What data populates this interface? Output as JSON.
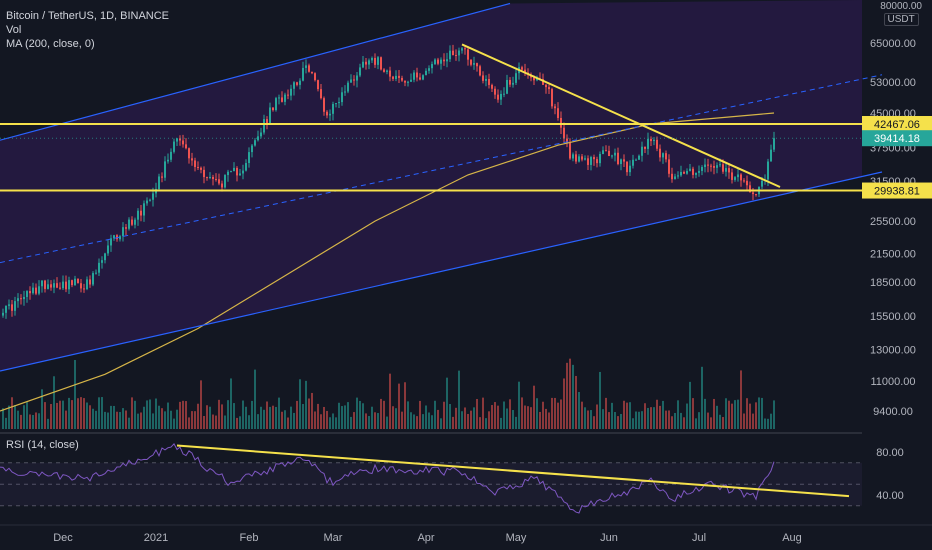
{
  "header": {
    "symbol": "Bitcoin / TetherUS, 1D, BINANCE",
    "vol_label": "Vol",
    "ma_label": "MA (200, close, 0)",
    "top_price": "80000.00",
    "currency": "USDT"
  },
  "rsi": {
    "label": "RSI (14, close)"
  },
  "colors": {
    "background": "#131722",
    "channel_fill": "#2a1b4a",
    "channel_line": "#2962ff",
    "yellow": "#f5e14b",
    "ma": "#d6b548",
    "up": "#26a69a",
    "down": "#ef5350",
    "rsi_line": "#7e57c2"
  },
  "chart_data": {
    "type": "candlestick",
    "price_axis": {
      "scale": "log",
      "ticks": [
        "65000.00",
        "53000.00",
        "45000.00",
        "37500.00",
        "31500.00",
        "25500.00",
        "21500.00",
        "18500.00",
        "15500.00",
        "13000.00",
        "11000.00",
        "9400.00"
      ],
      "labels": {
        "resistance": "42467.06",
        "current": "39414.18",
        "support": "29938.81"
      }
    },
    "rsi_axis": {
      "ticks": [
        "80.00",
        "40.00"
      ],
      "levels": [
        70,
        50,
        30
      ]
    },
    "x_axis": {
      "ticks": [
        "Dec",
        "2021",
        "Feb",
        "Mar",
        "Apr",
        "May",
        "Jun",
        "Jul",
        "Aug"
      ]
    },
    "anchors": [
      {
        "date": "2020-11-12",
        "close": 16000
      },
      {
        "date": "2020-11-25",
        "close": 18400
      },
      {
        "date": "2020-12-10",
        "close": 18300
      },
      {
        "date": "2020-12-17",
        "close": 22800
      },
      {
        "date": "2020-12-27",
        "close": 27000
      },
      {
        "date": "2021-01-03",
        "close": 32800
      },
      {
        "date": "2021-01-08",
        "close": 40500
      },
      {
        "date": "2021-01-13",
        "close": 34500
      },
      {
        "date": "2021-01-22",
        "close": 31000
      },
      {
        "date": "2021-01-30",
        "close": 34000
      },
      {
        "date": "2021-02-09",
        "close": 46500
      },
      {
        "date": "2021-02-21",
        "close": 57500
      },
      {
        "date": "2021-02-27",
        "close": 44500
      },
      {
        "date": "2021-03-13",
        "close": 61000
      },
      {
        "date": "2021-03-25",
        "close": 52500
      },
      {
        "date": "2021-04-13",
        "close": 63500
      },
      {
        "date": "2021-04-25",
        "close": 49000
      },
      {
        "date": "2021-05-03",
        "close": 57500
      },
      {
        "date": "2021-05-12",
        "close": 50000
      },
      {
        "date": "2021-05-19",
        "close": 36500
      },
      {
        "date": "2021-05-23",
        "close": 34500
      },
      {
        "date": "2021-06-01",
        "close": 36500
      },
      {
        "date": "2021-06-08",
        "close": 33500
      },
      {
        "date": "2021-06-15",
        "close": 40000
      },
      {
        "date": "2021-06-22",
        "close": 32500
      },
      {
        "date": "2021-07-06",
        "close": 34000
      },
      {
        "date": "2021-07-20",
        "close": 30000
      },
      {
        "date": "2021-07-23",
        "close": 32500
      },
      {
        "date": "2021-07-26",
        "close": 39414
      }
    ],
    "ma200_anchors": [
      {
        "date": "2020-11-10",
        "value": 9400
      },
      {
        "date": "2020-12-15",
        "value": 11400
      },
      {
        "date": "2021-01-15",
        "value": 14500
      },
      {
        "date": "2021-02-15",
        "value": 19500
      },
      {
        "date": "2021-03-15",
        "value": 25500
      },
      {
        "date": "2021-04-15",
        "value": 32500
      },
      {
        "date": "2021-05-15",
        "value": 38000
      },
      {
        "date": "2021-06-15",
        "value": 42500
      },
      {
        "date": "2021-07-26",
        "value": 45000
      }
    ],
    "rsi_anchors": [
      {
        "date": "2020-11-10",
        "value": 62
      },
      {
        "date": "2020-12-10",
        "value": 55
      },
      {
        "date": "2021-01-08",
        "value": 86
      },
      {
        "date": "2021-01-25",
        "value": 52
      },
      {
        "date": "2021-02-20",
        "value": 74
      },
      {
        "date": "2021-02-28",
        "value": 52
      },
      {
        "date": "2021-03-13",
        "value": 64
      },
      {
        "date": "2021-04-13",
        "value": 62
      },
      {
        "date": "2021-04-25",
        "value": 42
      },
      {
        "date": "2021-05-08",
        "value": 56
      },
      {
        "date": "2021-05-20",
        "value": 25
      },
      {
        "date": "2021-06-15",
        "value": 52
      },
      {
        "date": "2021-06-22",
        "value": 36
      },
      {
        "date": "2021-07-06",
        "value": 50
      },
      {
        "date": "2021-07-20",
        "value": 38
      },
      {
        "date": "2021-07-26",
        "value": 71
      }
    ],
    "trendlines": [
      {
        "name": "channel-upper",
        "from": {
          "date": "2020-11-10",
          "price": 39000
        },
        "to": {
          "date": "2021-04-29",
          "price": 80000
        }
      },
      {
        "name": "channel-mid",
        "from": {
          "date": "2020-11-10",
          "price": 20500
        },
        "to": {
          "date": "2021-08-31",
          "price": 55000
        }
      },
      {
        "name": "channel-lower",
        "from": {
          "date": "2020-11-10",
          "price": 11600
        },
        "to": {
          "date": "2021-08-31",
          "price": 33000
        }
      },
      {
        "name": "price-downtrend",
        "from": {
          "date": "2021-04-13",
          "price": 64500
        },
        "to": {
          "date": "2021-07-28",
          "price": 30500
        }
      },
      {
        "name": "rsi-downtrend",
        "pane": "rsi",
        "from": {
          "date": "2021-01-08",
          "value": 86
        },
        "to": {
          "date": "2021-08-20",
          "value": 39
        }
      }
    ],
    "horizontal_levels": [
      42467.06,
      29938.81
    ]
  }
}
